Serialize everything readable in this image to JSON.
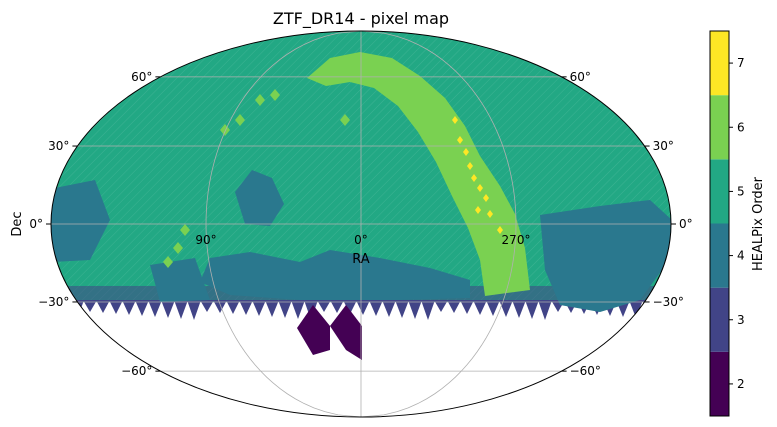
{
  "chart_data": {
    "type": "heatmap",
    "title": "ZTF_DR14 - pixel map",
    "projection": "mollweide (aitoff-style sky map)",
    "xlabel": "RA",
    "ylabel": "Dec",
    "grid": true,
    "ra_ticks": [
      {
        "label": "90°",
        "ra": 90
      },
      {
        "label": "0°",
        "ra": 0
      },
      {
        "label": "270°",
        "ra": 270
      }
    ],
    "dec_ticks": [
      {
        "label": "60°",
        "dec": 60
      },
      {
        "label": "30°",
        "dec": 30
      },
      {
        "label": "0°",
        "dec": 0
      },
      {
        "label": "−30°",
        "dec": -30
      },
      {
        "label": "−60°",
        "dec": -60
      }
    ],
    "colorbar": {
      "label": "HEALPix Order",
      "levels": [
        {
          "order": 2,
          "color": "#440154"
        },
        {
          "order": 3,
          "color": "#414487"
        },
        {
          "order": 4,
          "color": "#2a788e"
        },
        {
          "order": 5,
          "color": "#22a884"
        },
        {
          "order": 6,
          "color": "#7ad151"
        },
        {
          "order": 7,
          "color": "#fde725"
        }
      ],
      "tick_labels": [
        "2",
        "3",
        "4",
        "5",
        "6",
        "7"
      ]
    },
    "coverage": {
      "dec_min": -30,
      "dec_max": 90,
      "dominant_order": 5,
      "regions": [
        {
          "desc": "galactic plane band",
          "order": 6
        },
        {
          "desc": "dense bulge core",
          "order": 7
        },
        {
          "desc": "low-density patches",
          "order": 4
        },
        {
          "desc": "southern edge teeth",
          "order": 3
        },
        {
          "desc": "deep south large pixels",
          "order": 2
        }
      ]
    }
  }
}
